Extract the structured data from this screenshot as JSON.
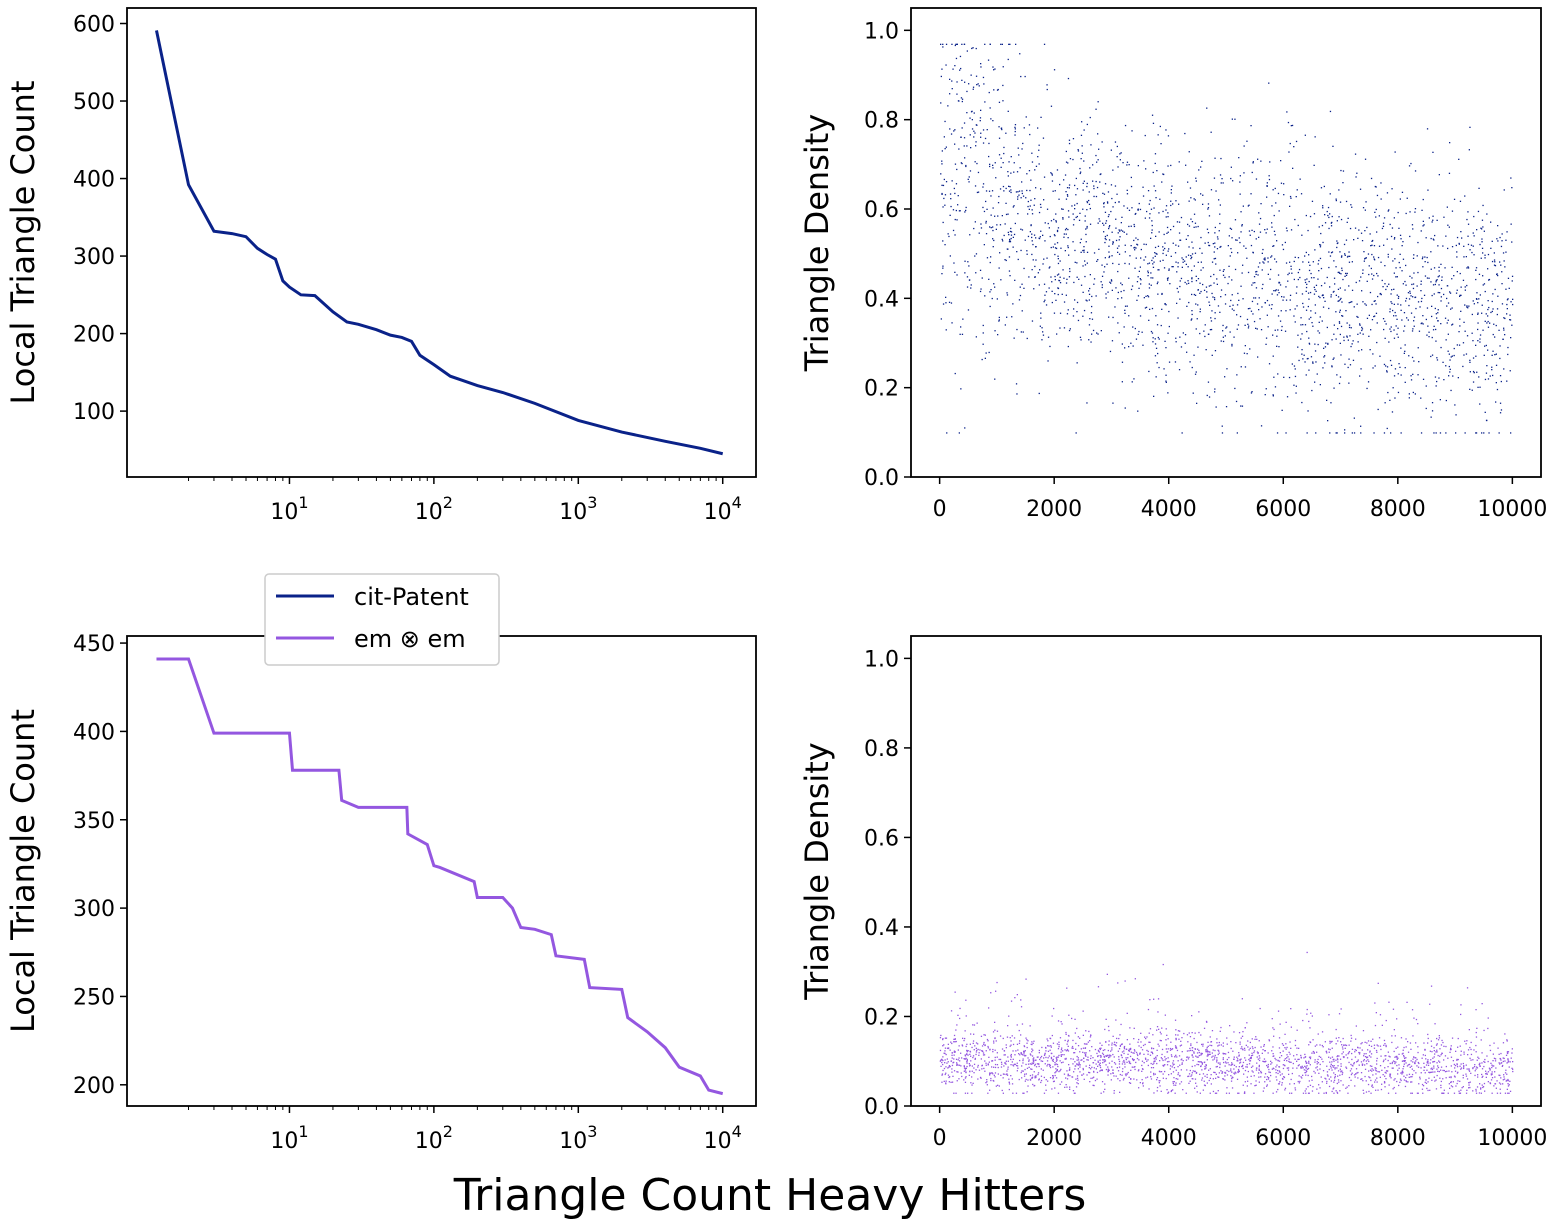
{
  "figure": {
    "xlabel": "Triangle Count Heavy Hitters",
    "legend": {
      "entries": [
        {
          "label": "cit-Patent",
          "color": "#0a2289"
        },
        {
          "label": "em ⊗ em",
          "color": "#9457e0"
        }
      ]
    }
  },
  "chart_data": [
    {
      "id": "top-left",
      "type": "line",
      "xscale": "log",
      "ylabel": "Local Triangle Count",
      "xlabel": "",
      "xlim": [
        0.75,
        17000
      ],
      "ylim": [
        15,
        620
      ],
      "xticks": [
        {
          "value": 10,
          "base": "10",
          "exp": "1"
        },
        {
          "value": 100,
          "base": "10",
          "exp": "2"
        },
        {
          "value": 1000,
          "base": "10",
          "exp": "3"
        },
        {
          "value": 10000,
          "base": "10",
          "exp": "4"
        }
      ],
      "yticks": [
        100,
        200,
        300,
        400,
        500,
        600
      ],
      "color": "#0a2289",
      "series": [
        {
          "name": "cit-Patent",
          "x": [
            1.2,
            2,
            3,
            4,
            5,
            6,
            7,
            8,
            9,
            10,
            12,
            15,
            20,
            25,
            30,
            40,
            50,
            60,
            70,
            80,
            100,
            130,
            200,
            300,
            500,
            1000,
            2000,
            4000,
            7000,
            10000
          ],
          "y": [
            591,
            392,
            332,
            329,
            325,
            310,
            302,
            296,
            268,
            260,
            250,
            249,
            228,
            215,
            212,
            205,
            198,
            195,
            190,
            172,
            160,
            145,
            133,
            124,
            110,
            88,
            73,
            61,
            52,
            45
          ]
        }
      ]
    },
    {
      "id": "top-right",
      "type": "scatter",
      "ylabel": "Triangle Density",
      "xlabel": "",
      "xlim": [
        -500,
        10500
      ],
      "ylim": [
        0,
        1.05
      ],
      "xticks": [
        0,
        2000,
        4000,
        6000,
        8000,
        10000
      ],
      "yticks": [
        0.0,
        0.2,
        0.4,
        0.6,
        0.8,
        1.0
      ],
      "color": "#0a2289",
      "n_points": 10000,
      "trend": {
        "x": [
          0,
          1000,
          2000,
          4000,
          6000,
          8000,
          10000
        ],
        "y": [
          0.72,
          0.62,
          0.53,
          0.47,
          0.44,
          0.4,
          0.37
        ]
      },
      "y_range_observed": [
        0.1,
        0.97
      ]
    },
    {
      "id": "bottom-left",
      "type": "line",
      "xscale": "log",
      "ylabel": "Local Triangle Count",
      "xlabel": "",
      "xlim": [
        0.75,
        17000
      ],
      "ylim": [
        188,
        454
      ],
      "xticks": [
        {
          "value": 10,
          "base": "10",
          "exp": "1"
        },
        {
          "value": 100,
          "base": "10",
          "exp": "2"
        },
        {
          "value": 1000,
          "base": "10",
          "exp": "3"
        },
        {
          "value": 10000,
          "base": "10",
          "exp": "4"
        }
      ],
      "yticks": [
        200,
        250,
        300,
        350,
        400,
        450
      ],
      "color": "#9457e0",
      "series": [
        {
          "name": "em ⊗ em",
          "x": [
            1.2,
            2,
            3,
            10,
            10.5,
            22,
            23,
            30,
            65,
            66,
            90,
            100,
            110,
            190,
            200,
            300,
            350,
            400,
            500,
            650,
            700,
            1100,
            1200,
            2000,
            2200,
            3000,
            4000,
            5000,
            7000,
            8000,
            10000
          ],
          "y": [
            441,
            441,
            399,
            399,
            378,
            378,
            361,
            357,
            357,
            342,
            336,
            324,
            323,
            315,
            306,
            306,
            300,
            289,
            288,
            285,
            273,
            271,
            255,
            254,
            238,
            230,
            221,
            210,
            205,
            197,
            195
          ]
        }
      ]
    },
    {
      "id": "bottom-right",
      "type": "scatter",
      "ylabel": "Triangle Density",
      "xlabel": "",
      "xlim": [
        -500,
        10500
      ],
      "ylim": [
        0,
        1.05
      ],
      "xticks": [
        0,
        2000,
        4000,
        6000,
        8000,
        10000
      ],
      "yticks": [
        0.0,
        0.2,
        0.4,
        0.6,
        0.8,
        1.0
      ],
      "color": "#9457e0",
      "n_points": 10000,
      "trend": {
        "x": [
          0,
          2000,
          4000,
          6000,
          8000,
          10000
        ],
        "y": [
          0.1,
          0.1,
          0.1,
          0.09,
          0.09,
          0.08
        ]
      },
      "y_range_observed": [
        0.03,
        0.37
      ]
    }
  ]
}
